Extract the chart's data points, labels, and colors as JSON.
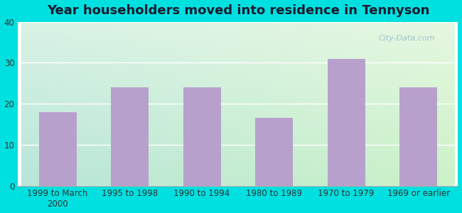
{
  "title": "Year householders moved into residence in Tennyson",
  "categories": [
    "1999 to March\n2000",
    "1995 to 1998",
    "1990 to 1994",
    "1980 to 1989",
    "1970 to 1979",
    "1969 or earlier"
  ],
  "values": [
    18,
    24,
    24,
    16.5,
    31,
    24
  ],
  "bar_color": "#b8a0cc",
  "ylim": [
    0,
    40
  ],
  "yticks": [
    0,
    10,
    20,
    30,
    40
  ],
  "background_outer": "#00e0e0",
  "grid_color": "#ffffff",
  "title_fontsize": 13,
  "tick_fontsize": 8.5,
  "watermark": "City-Data.com",
  "bg_top_left": "#d0ede0",
  "bg_top_right": "#d8f0d0",
  "bg_bottom_left": "#b0ddd8",
  "bg_bottom_right": "#c8ecc0"
}
